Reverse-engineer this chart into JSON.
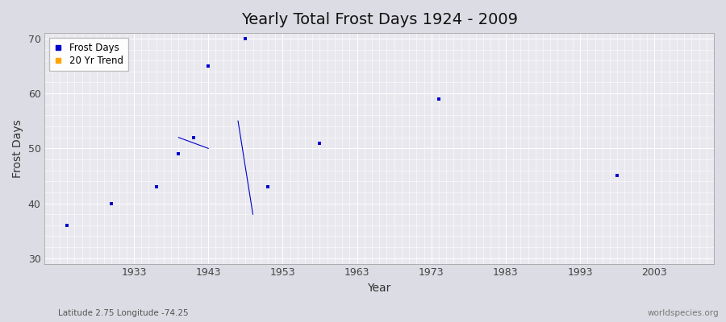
{
  "title": "Yearly Total Frost Days 1924 - 2009",
  "xlabel": "Year",
  "ylabel": "Frost Days",
  "subtitle": "Latitude 2.75 Longitude -74.25",
  "watermark": "worldspecies.org",
  "frost_days": [
    [
      1924,
      36
    ],
    [
      1930,
      40
    ],
    [
      1936,
      43
    ],
    [
      1939,
      49
    ],
    [
      1941,
      52
    ],
    [
      1943,
      65
    ],
    [
      1948,
      70
    ],
    [
      1951,
      43
    ],
    [
      1958,
      51
    ],
    [
      1974,
      59
    ],
    [
      1998,
      45
    ]
  ],
  "trend_lines": [
    {
      "x": [
        1939,
        1943
      ],
      "y": [
        52,
        50
      ]
    },
    {
      "x": [
        1947,
        1949
      ],
      "y": [
        55,
        38
      ]
    }
  ],
  "scatter_color": "#0000cc",
  "trend_color": "#0000cc",
  "legend_frost_color": "#0000cc",
  "legend_trend_color": "#ffa500",
  "xlim": [
    1921,
    2011
  ],
  "ylim": [
    29,
    71
  ],
  "yticks": [
    30,
    40,
    50,
    60,
    70
  ],
  "xticks": [
    1933,
    1943,
    1953,
    1963,
    1973,
    1983,
    1993,
    2003
  ],
  "bg_color": "#dcdce4",
  "plot_bg_color": "#e8e8ee",
  "grid_color": "#ffffff",
  "title_fontsize": 14,
  "axis_fontsize": 10,
  "tick_fontsize": 9,
  "marker_size": 3.5
}
